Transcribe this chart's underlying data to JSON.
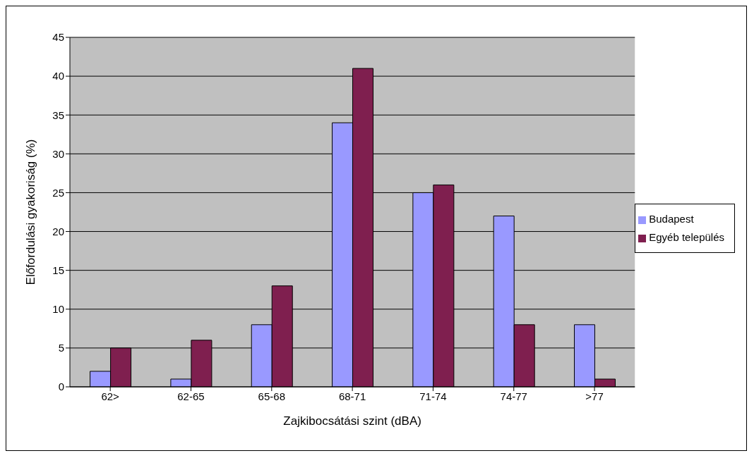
{
  "chart_data": {
    "type": "bar",
    "xlabel": "Zajkibocsátási szint (dBA)",
    "ylabel": "Előfordulási gyakoriság (%)",
    "categories": [
      "62>",
      "62-65",
      "65-68",
      "68-71",
      "71-74",
      "74-77",
      ">77"
    ],
    "series": [
      {
        "name": "Budapest",
        "color": "#9999ff",
        "values": [
          2,
          1,
          8,
          34,
          25,
          22,
          8
        ]
      },
      {
        "name": "Egyéb település",
        "color": "#7f1f4f",
        "values": [
          5,
          6,
          13,
          41,
          26,
          8,
          1
        ]
      }
    ],
    "ylim": [
      0,
      45
    ],
    "yticks": [
      0,
      5,
      10,
      15,
      20,
      25,
      30,
      35,
      40,
      45
    ],
    "grid": "y",
    "legend": "right"
  }
}
